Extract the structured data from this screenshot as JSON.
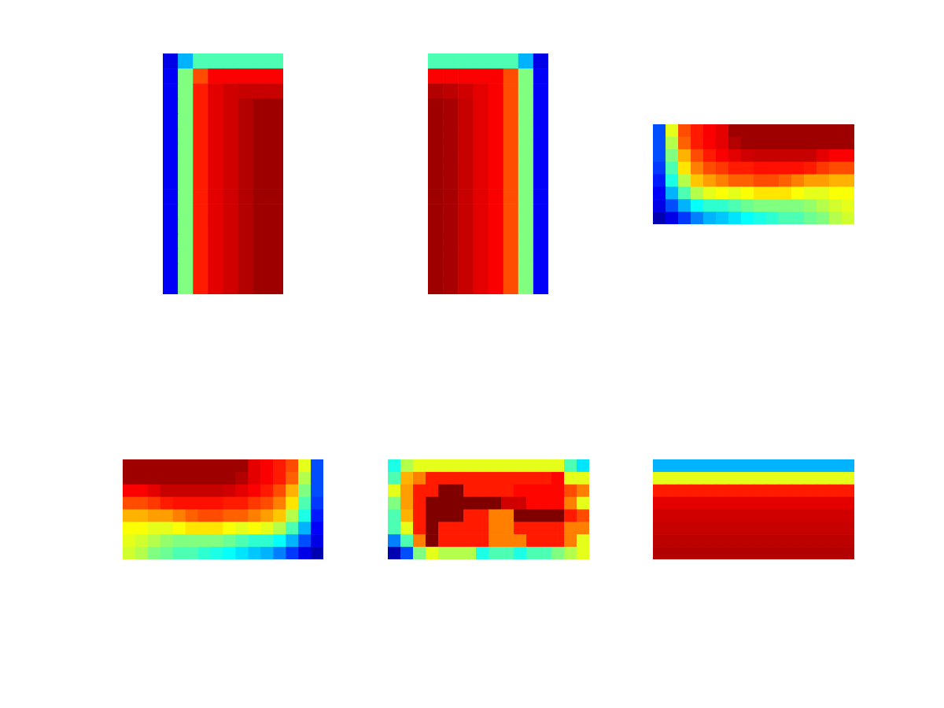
{
  "chart_data": [
    {
      "type": "heatmap",
      "tick_labels": false,
      "color_range": [
        0,
        1
      ],
      "cells": [
        [
          0.1,
          0.3,
          0.45,
          0.45,
          0.45,
          0.45,
          0.45,
          0.45
        ],
        [
          0.12,
          0.5,
          0.8,
          0.88,
          0.88,
          0.88,
          0.88,
          0.88
        ],
        [
          0.12,
          0.5,
          0.85,
          0.9,
          0.92,
          0.93,
          0.93,
          0.93
        ],
        [
          0.12,
          0.5,
          0.85,
          0.9,
          0.92,
          0.95,
          0.97,
          0.97
        ],
        [
          0.12,
          0.5,
          0.85,
          0.9,
          0.92,
          0.95,
          0.97,
          0.97
        ],
        [
          0.12,
          0.5,
          0.85,
          0.9,
          0.92,
          0.95,
          0.97,
          0.97
        ],
        [
          0.12,
          0.5,
          0.85,
          0.9,
          0.92,
          0.95,
          0.97,
          0.97
        ],
        [
          0.12,
          0.5,
          0.85,
          0.9,
          0.92,
          0.95,
          0.97,
          0.97
        ],
        [
          0.12,
          0.5,
          0.85,
          0.9,
          0.92,
          0.95,
          0.97,
          0.97
        ],
        [
          0.12,
          0.5,
          0.85,
          0.9,
          0.92,
          0.95,
          0.97,
          0.97
        ],
        [
          0.12,
          0.5,
          0.85,
          0.9,
          0.92,
          0.95,
          0.97,
          0.97
        ],
        [
          0.12,
          0.5,
          0.85,
          0.9,
          0.92,
          0.95,
          0.97,
          0.97
        ],
        [
          0.12,
          0.5,
          0.85,
          0.9,
          0.92,
          0.95,
          0.97,
          0.97
        ],
        [
          0.12,
          0.5,
          0.85,
          0.9,
          0.92,
          0.95,
          0.97,
          0.97
        ],
        [
          0.12,
          0.5,
          0.85,
          0.9,
          0.92,
          0.95,
          0.97,
          0.97
        ],
        [
          0.12,
          0.5,
          0.85,
          0.9,
          0.92,
          0.95,
          0.97,
          0.97
        ]
      ]
    },
    {
      "type": "heatmap",
      "tick_labels": false,
      "color_range": [
        0,
        1
      ],
      "cells": [
        [
          0.45,
          0.45,
          0.45,
          0.45,
          0.45,
          0.45,
          0.3,
          0.1
        ],
        [
          0.88,
          0.88,
          0.88,
          0.88,
          0.88,
          0.8,
          0.5,
          0.12
        ],
        [
          0.95,
          0.94,
          0.92,
          0.9,
          0.88,
          0.8,
          0.5,
          0.12
        ],
        [
          0.97,
          0.96,
          0.93,
          0.9,
          0.88,
          0.8,
          0.5,
          0.12
        ],
        [
          0.97,
          0.96,
          0.93,
          0.9,
          0.88,
          0.8,
          0.5,
          0.12
        ],
        [
          0.97,
          0.96,
          0.93,
          0.9,
          0.88,
          0.8,
          0.5,
          0.12
        ],
        [
          0.97,
          0.96,
          0.93,
          0.9,
          0.88,
          0.8,
          0.5,
          0.12
        ],
        [
          0.97,
          0.96,
          0.93,
          0.9,
          0.88,
          0.8,
          0.5,
          0.12
        ],
        [
          0.97,
          0.96,
          0.93,
          0.9,
          0.88,
          0.8,
          0.5,
          0.12
        ],
        [
          0.97,
          0.96,
          0.93,
          0.9,
          0.88,
          0.8,
          0.5,
          0.12
        ],
        [
          0.97,
          0.96,
          0.93,
          0.9,
          0.88,
          0.8,
          0.5,
          0.12
        ],
        [
          0.97,
          0.96,
          0.93,
          0.9,
          0.88,
          0.8,
          0.5,
          0.12
        ],
        [
          0.97,
          0.96,
          0.93,
          0.9,
          0.88,
          0.8,
          0.5,
          0.12
        ],
        [
          0.97,
          0.96,
          0.93,
          0.9,
          0.88,
          0.8,
          0.5,
          0.12
        ],
        [
          0.97,
          0.96,
          0.93,
          0.9,
          0.88,
          0.8,
          0.5,
          0.12
        ],
        [
          0.97,
          0.96,
          0.93,
          0.9,
          0.88,
          0.8,
          0.5,
          0.12
        ]
      ]
    },
    {
      "type": "heatmap",
      "tick_labels": false,
      "color_range": [
        0,
        1
      ],
      "cells": [
        [
          0.2,
          0.6,
          0.8,
          0.85,
          0.88,
          0.9,
          0.97,
          0.97,
          0.97,
          0.97,
          0.97,
          0.97,
          0.97,
          0.97,
          0.97,
          0.97
        ],
        [
          0.2,
          0.55,
          0.78,
          0.85,
          0.88,
          0.9,
          0.95,
          0.97,
          0.97,
          0.97,
          0.97,
          0.97,
          0.97,
          0.97,
          0.97,
          0.97
        ],
        [
          0.2,
          0.5,
          0.7,
          0.8,
          0.85,
          0.88,
          0.9,
          0.92,
          0.93,
          0.93,
          0.93,
          0.93,
          0.93,
          0.9,
          0.88,
          0.88
        ],
        [
          0.18,
          0.45,
          0.65,
          0.75,
          0.8,
          0.82,
          0.85,
          0.85,
          0.86,
          0.86,
          0.86,
          0.86,
          0.85,
          0.82,
          0.8,
          0.8
        ],
        [
          0.15,
          0.4,
          0.55,
          0.68,
          0.72,
          0.75,
          0.78,
          0.78,
          0.8,
          0.8,
          0.78,
          0.75,
          0.72,
          0.72,
          0.7,
          0.7
        ],
        [
          0.12,
          0.3,
          0.45,
          0.55,
          0.6,
          0.62,
          0.6,
          0.62,
          0.65,
          0.65,
          0.65,
          0.62,
          0.6,
          0.6,
          0.62,
          0.62
        ],
        [
          0.1,
          0.2,
          0.3,
          0.38,
          0.42,
          0.42,
          0.45,
          0.48,
          0.5,
          0.5,
          0.5,
          0.5,
          0.52,
          0.55,
          0.58,
          0.6
        ],
        [
          0.05,
          0.1,
          0.18,
          0.25,
          0.3,
          0.32,
          0.35,
          0.38,
          0.4,
          0.42,
          0.45,
          0.45,
          0.48,
          0.5,
          0.55,
          0.58
        ]
      ]
    },
    {
      "type": "heatmap",
      "tick_labels": false,
      "color_range": [
        0,
        1
      ],
      "cells": [
        [
          0.97,
          0.97,
          0.97,
          0.97,
          0.97,
          0.97,
          0.97,
          0.97,
          0.97,
          0.97,
          0.9,
          0.88,
          0.85,
          0.8,
          0.6,
          0.2
        ],
        [
          0.97,
          0.97,
          0.97,
          0.97,
          0.97,
          0.97,
          0.97,
          0.97,
          0.97,
          0.95,
          0.9,
          0.88,
          0.85,
          0.78,
          0.55,
          0.2
        ],
        [
          0.88,
          0.88,
          0.9,
          0.93,
          0.93,
          0.93,
          0.93,
          0.93,
          0.92,
          0.9,
          0.88,
          0.85,
          0.8,
          0.7,
          0.5,
          0.2
        ],
        [
          0.8,
          0.8,
          0.82,
          0.85,
          0.86,
          0.86,
          0.86,
          0.86,
          0.85,
          0.85,
          0.82,
          0.8,
          0.75,
          0.65,
          0.45,
          0.18
        ],
        [
          0.7,
          0.7,
          0.72,
          0.72,
          0.75,
          0.78,
          0.8,
          0.8,
          0.78,
          0.78,
          0.75,
          0.72,
          0.68,
          0.55,
          0.4,
          0.15
        ],
        [
          0.62,
          0.62,
          0.6,
          0.6,
          0.62,
          0.65,
          0.65,
          0.65,
          0.62,
          0.6,
          0.62,
          0.6,
          0.55,
          0.45,
          0.3,
          0.12
        ],
        [
          0.6,
          0.58,
          0.55,
          0.52,
          0.5,
          0.5,
          0.5,
          0.5,
          0.48,
          0.45,
          0.42,
          0.42,
          0.38,
          0.3,
          0.2,
          0.1
        ],
        [
          0.58,
          0.55,
          0.5,
          0.48,
          0.45,
          0.45,
          0.42,
          0.4,
          0.38,
          0.35,
          0.32,
          0.3,
          0.25,
          0.18,
          0.1,
          0.05
        ]
      ]
    },
    {
      "type": "heatmap",
      "tick_labels": false,
      "color_range": [
        0,
        1
      ],
      "cells": [
        [
          0.4,
          0.55,
          0.6,
          0.6,
          0.6,
          0.6,
          0.6,
          0.6,
          0.6,
          0.6,
          0.6,
          0.6,
          0.6,
          0.6,
          0.45,
          0.35
        ],
        [
          0.45,
          0.7,
          0.75,
          0.85,
          0.85,
          0.85,
          0.85,
          0.85,
          0.85,
          0.85,
          0.85,
          0.85,
          0.85,
          0.87,
          0.6,
          0.6
        ],
        [
          0.6,
          0.72,
          0.85,
          0.85,
          1,
          1,
          0.85,
          0.85,
          0.85,
          0.85,
          0.87,
          0.87,
          0.87,
          0.87,
          0.8,
          0.75
        ],
        [
          0.5,
          0.72,
          0.85,
          1,
          1,
          1,
          1,
          1,
          1,
          0.92,
          0.92,
          0.87,
          0.87,
          0.87,
          0.75,
          0.6
        ],
        [
          0.45,
          0.7,
          0.85,
          1,
          1,
          1,
          0.85,
          0.85,
          0.75,
          0.75,
          1,
          1,
          1,
          1,
          0.85,
          0.8
        ],
        [
          0.45,
          0.6,
          0.85,
          1,
          0.85,
          0.85,
          0.85,
          0.85,
          0.75,
          0.75,
          0.85,
          0.85,
          0.85,
          0.85,
          0.75,
          0.75
        ],
        [
          0.25,
          0.45,
          0.75,
          1,
          0.85,
          0.85,
          0.85,
          0.85,
          0.75,
          0.75,
          0.75,
          0.85,
          0.85,
          0.85,
          0.75,
          0.6
        ],
        [
          0.05,
          0.2,
          0.5,
          0.6,
          0.55,
          0.55,
          0.55,
          0.4,
          0.45,
          0.45,
          0.4,
          0.45,
          0.45,
          0.5,
          0.55,
          0.6
        ]
      ]
    },
    {
      "type": "heatmap",
      "tick_labels": false,
      "color_range": [
        0,
        1
      ],
      "cells": [
        [
          0.3,
          0.3,
          0.3,
          0.3,
          0.3,
          0.3,
          0.3,
          0.3,
          0.3,
          0.3,
          0.3,
          0.3,
          0.3,
          0.3,
          0.3,
          0.3
        ],
        [
          0.6,
          0.6,
          0.6,
          0.6,
          0.6,
          0.6,
          0.6,
          0.6,
          0.6,
          0.6,
          0.6,
          0.6,
          0.6,
          0.6,
          0.6,
          0.6
        ],
        [
          0.85,
          0.85,
          0.85,
          0.85,
          0.85,
          0.85,
          0.85,
          0.85,
          0.85,
          0.85,
          0.85,
          0.85,
          0.85,
          0.85,
          0.85,
          0.85
        ],
        [
          0.9,
          0.9,
          0.9,
          0.9,
          0.9,
          0.9,
          0.9,
          0.9,
          0.9,
          0.9,
          0.9,
          0.9,
          0.9,
          0.9,
          0.9,
          0.9
        ],
        [
          0.92,
          0.92,
          0.92,
          0.92,
          0.92,
          0.92,
          0.92,
          0.92,
          0.92,
          0.92,
          0.92,
          0.92,
          0.92,
          0.92,
          0.92,
          0.92
        ],
        [
          0.93,
          0.93,
          0.93,
          0.93,
          0.93,
          0.93,
          0.93,
          0.93,
          0.93,
          0.93,
          0.93,
          0.93,
          0.93,
          0.93,
          0.93,
          0.93
        ],
        [
          0.94,
          0.94,
          0.94,
          0.94,
          0.94,
          0.94,
          0.94,
          0.94,
          0.94,
          0.94,
          0.94,
          0.94,
          0.94,
          0.94,
          0.94,
          0.94
        ],
        [
          0.95,
          0.95,
          0.95,
          0.95,
          0.95,
          0.95,
          0.95,
          0.95,
          0.95,
          0.95,
          0.95,
          0.95,
          0.95,
          0.95,
          0.95,
          0.95
        ]
      ]
    }
  ]
}
